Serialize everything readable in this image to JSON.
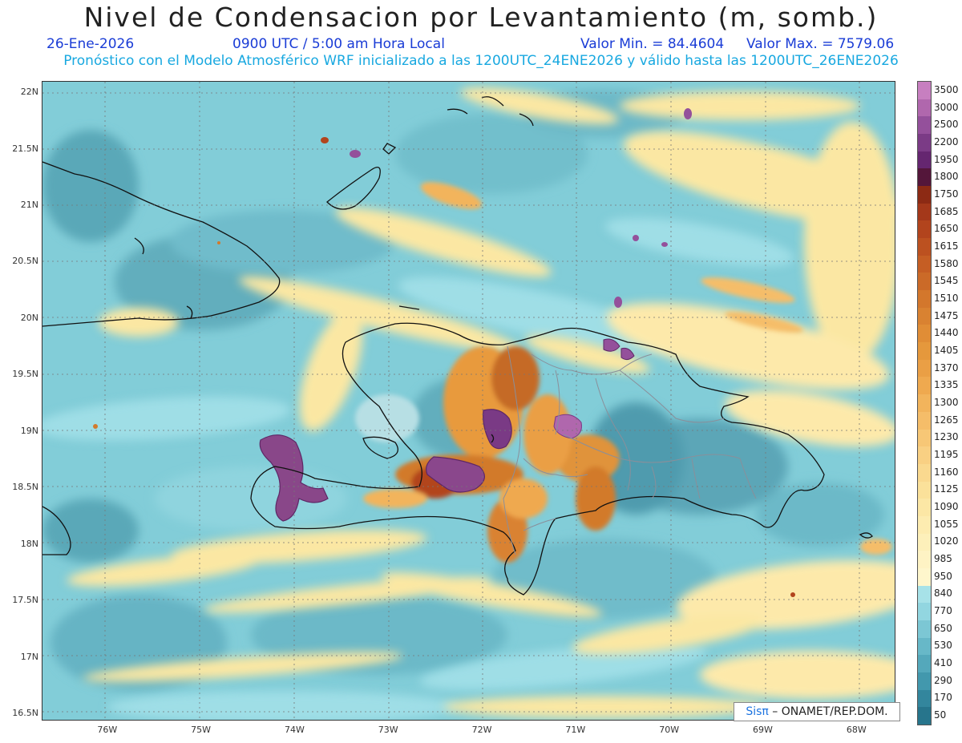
{
  "header": {
    "title": "Nivel de Condensacion por Levantamiento (m, somb.)",
    "date": "26-Ene-2026",
    "time": "0900 UTC / 5:00 am Hora Local",
    "valmin": "Valor Min. = 84.4604",
    "valmax": "Valor Max. = 7579.06",
    "model_info": "Pronóstico con el Modelo Atmosférico WRF inicializado a las 1200UTC_24ENE2026 y válido hasta las  1200UTC_26ENE2026"
  },
  "axes": {
    "lat_labels": [
      "22N",
      "21.5N",
      "21N",
      "20.5N",
      "20N",
      "19.5N",
      "19N",
      "18.5N",
      "18N",
      "17.5N",
      "17N",
      "16.5N"
    ],
    "lon_labels": [
      "76W",
      "75W",
      "74W",
      "73W",
      "72W",
      "71W",
      "70W",
      "69W",
      "68W"
    ],
    "lat_values": [
      22,
      21.5,
      21,
      20.5,
      20,
      19.5,
      19,
      18.5,
      18,
      17.5,
      17,
      16.5
    ],
    "lon_values": [
      -76,
      -75,
      -74,
      -73,
      -72,
      -71,
      -70,
      -69,
      -68
    ],
    "lat_range": [
      16.45,
      22.1
    ],
    "lon_range": [
      -76.7,
      -67.6
    ]
  },
  "colorbar": {
    "labels": [
      "3500",
      "3000",
      "2500",
      "2200",
      "1950",
      "1800",
      "1750",
      "1685",
      "1650",
      "1615",
      "1580",
      "1545",
      "1510",
      "1475",
      "1440",
      "1405",
      "1370",
      "1335",
      "1300",
      "1265",
      "1230",
      "1195",
      "1160",
      "1125",
      "1090",
      "1055",
      "1020",
      "985",
      "950",
      "840",
      "770",
      "650",
      "530",
      "410",
      "290",
      "170",
      "50"
    ],
    "colors": [
      "#c77fc0",
      "#b067ad",
      "#94509b",
      "#7b3b86",
      "#652670",
      "#54163a",
      "#8c2a14",
      "#a4381a",
      "#b2441d",
      "#bc5120",
      "#c55e24",
      "#cb6a28",
      "#d3772c",
      "#d98231",
      "#e08d36",
      "#e5983c",
      "#ea9f45",
      "#efa94f",
      "#f2b45c",
      "#f5bd69",
      "#f7c776",
      "#f9d083",
      "#fad98f",
      "#fbe19a",
      "#fce7a5",
      "#fdecb0",
      "#fdf0ba",
      "#fef3c4",
      "#fef6cc",
      "#a7e2e8",
      "#92d6e0",
      "#7cc7d4",
      "#67b8c8",
      "#54a8bb",
      "#4298ad",
      "#33869d",
      "#27758c"
    ]
  },
  "credit": {
    "sis": "Sis",
    "pi": "π",
    "rest": " – ONAMET/REP.DOM."
  }
}
